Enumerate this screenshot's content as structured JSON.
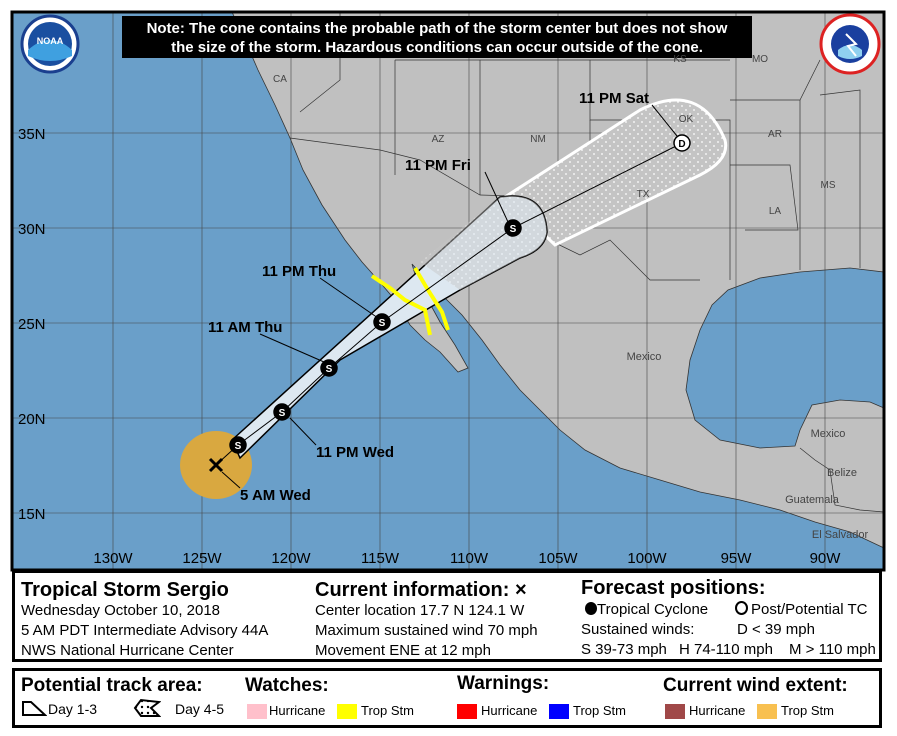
{
  "note": {
    "line1": "Note: The cone contains the probable path of the storm center but does not show",
    "line2": "the size of the storm. Hazardous conditions can occur outside of the cone."
  },
  "logos": {
    "left": "NOAA",
    "right": "NATIONAL WEATHER SERVICE"
  },
  "map": {
    "lat_labels": [
      "35N",
      "30N",
      "25N",
      "20N",
      "15N"
    ],
    "lon_labels": [
      "130W",
      "125W",
      "120W",
      "115W",
      "110W",
      "105W",
      "100W",
      "95W",
      "90W"
    ],
    "region_labels": [
      "CA",
      "AZ",
      "NM",
      "OK",
      "TX",
      "AR",
      "MS",
      "LA",
      "KS",
      "MO",
      "Mexico",
      "Mexico",
      "Belize",
      "Guatemala",
      "El Salvador"
    ],
    "forecast_labels": [
      "5 AM Wed",
      "11 PM Wed",
      "11 AM Thu",
      "11 PM Thu",
      "11 PM Fri",
      "11 PM Sat"
    ],
    "marker_letters": {
      "storm": "S",
      "depression": "D"
    },
    "colors": {
      "ocean": "#6a9fc9",
      "land": "#c0c0c0",
      "cone": "#dde8f1",
      "trop_storm_wind": "#d9a840",
      "trop_storm_watch": "#ffff00"
    }
  },
  "info": {
    "title": "Tropical Storm Sergio",
    "date": "Wednesday October 10, 2018",
    "advisory": "5 AM PDT Intermediate Advisory 44A",
    "center": "NWS National Hurricane Center",
    "current_header": "Current information:",
    "current_marker": "×",
    "location": "Center location 17.7 N 124.1 W",
    "max_wind": "Maximum sustained wind 70 mph",
    "movement": "Movement ENE at 12 mph",
    "forecast_header": "Forecast positions:",
    "tropical_cyclone": "Tropical Cyclone",
    "post_potential": "Post/Potential TC",
    "sustained_winds": "Sustained winds:",
    "d_range": "D < 39 mph",
    "s_range": "S 39-73 mph",
    "h_range": "H 74-110 mph",
    "m_range": "M > 110 mph"
  },
  "keys": {
    "track_header": "Potential track area:",
    "day13": "Day 1-3",
    "day45": "Day 4-5",
    "watches_header": "Watches:",
    "warnings_header": "Warnings:",
    "wind_header": "Current wind extent:",
    "hurricane": "Hurricane",
    "trop_stm": "Trop Stm",
    "colors": {
      "hurricane_watch": "#ffc0cb",
      "trop_storm_watch": "#ffff00",
      "hurricane_warning": "#ff0000",
      "trop_storm_warning": "#0000ff",
      "hurricane_wind": "#a04848",
      "trop_storm_wind": "#f8c050"
    }
  }
}
